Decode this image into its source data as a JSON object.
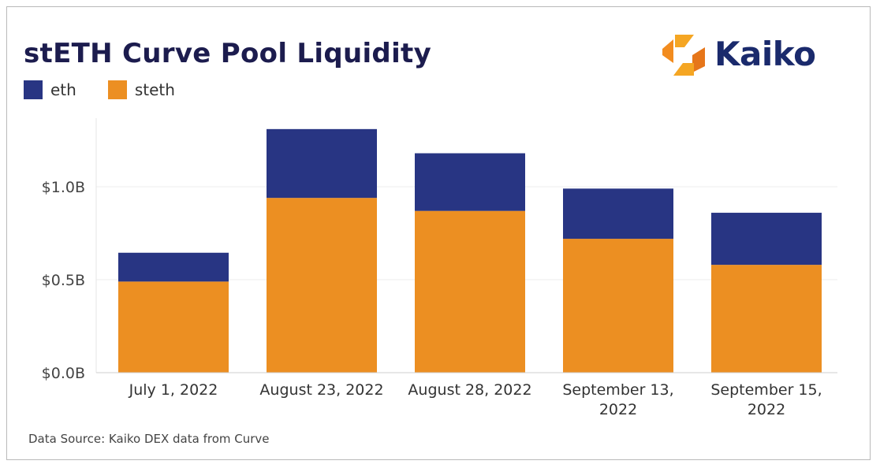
{
  "title": "stETH Curve Pool Liquidity",
  "logo_text": "Kaiko",
  "source": "Data Source: Kaiko DEX data from Curve",
  "colors": {
    "eth": "#283583",
    "steth": "#ec8f22",
    "logo_orange": "#f28c1f",
    "logo_navy": "#1a2a6c"
  },
  "chart_data": {
    "type": "bar",
    "stacked": true,
    "title": "stETH Curve Pool Liquidity",
    "categories": [
      [
        "July 1, 2022"
      ],
      [
        "August 23, 2022"
      ],
      [
        "August 28, 2022"
      ],
      [
        "September 13,",
        "2022"
      ],
      [
        "September 15,",
        "2022"
      ]
    ],
    "series": [
      {
        "name": "steth",
        "values": [
          0.49,
          0.94,
          0.87,
          0.72,
          0.58
        ]
      },
      {
        "name": "eth",
        "values": [
          0.155,
          0.37,
          0.31,
          0.27,
          0.28
        ]
      }
    ],
    "legend": {
      "position": "top-left",
      "entries": [
        "eth",
        "steth"
      ]
    },
    "yticks": [
      0.0,
      0.5,
      1.0
    ],
    "ytick_labels": [
      "$0.0B",
      "$0.5B",
      "$1.0B"
    ],
    "ylim": [
      0,
      1.3
    ],
    "grid": true,
    "xlabel": "",
    "ylabel": ""
  }
}
